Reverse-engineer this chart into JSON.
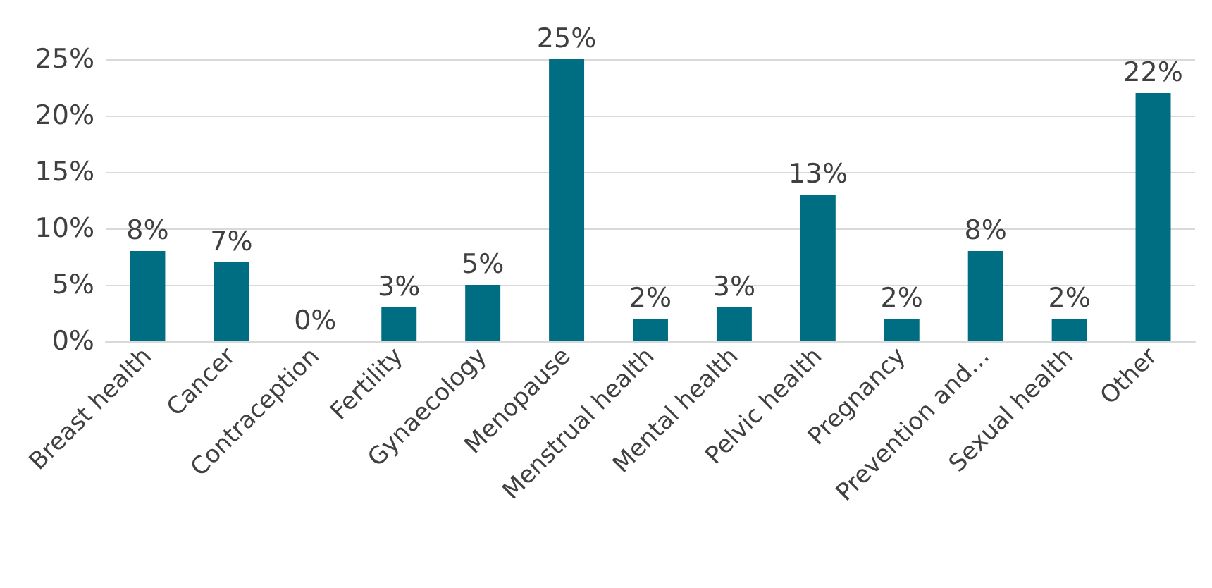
{
  "chart_data": {
    "type": "bar",
    "categories": [
      "Breast health",
      "Cancer",
      "Contraception",
      "Fertility",
      "Gynaecology",
      "Menopause",
      "Menstrual health",
      "Mental health",
      "Pelvic health",
      "Pregnancy",
      "Prevention and…",
      "Sexual health",
      "Other"
    ],
    "values": [
      8,
      7,
      0,
      3,
      5,
      25,
      2,
      3,
      13,
      2,
      8,
      2,
      22
    ],
    "value_labels": [
      "8%",
      "7%",
      "0%",
      "3%",
      "5%",
      "25%",
      "2%",
      "3%",
      "13%",
      "2%",
      "8%",
      "2%",
      "22%"
    ],
    "color": "#006e82",
    "ylim": [
      0,
      25
    ],
    "yticks": [
      {
        "value": 0,
        "label": "0%"
      },
      {
        "value": 5,
        "label": "5%"
      },
      {
        "value": 10,
        "label": "10%"
      },
      {
        "value": 15,
        "label": "15%"
      },
      {
        "value": 20,
        "label": "20%"
      },
      {
        "value": 25,
        "label": "25%"
      }
    ],
    "grid": "y"
  }
}
